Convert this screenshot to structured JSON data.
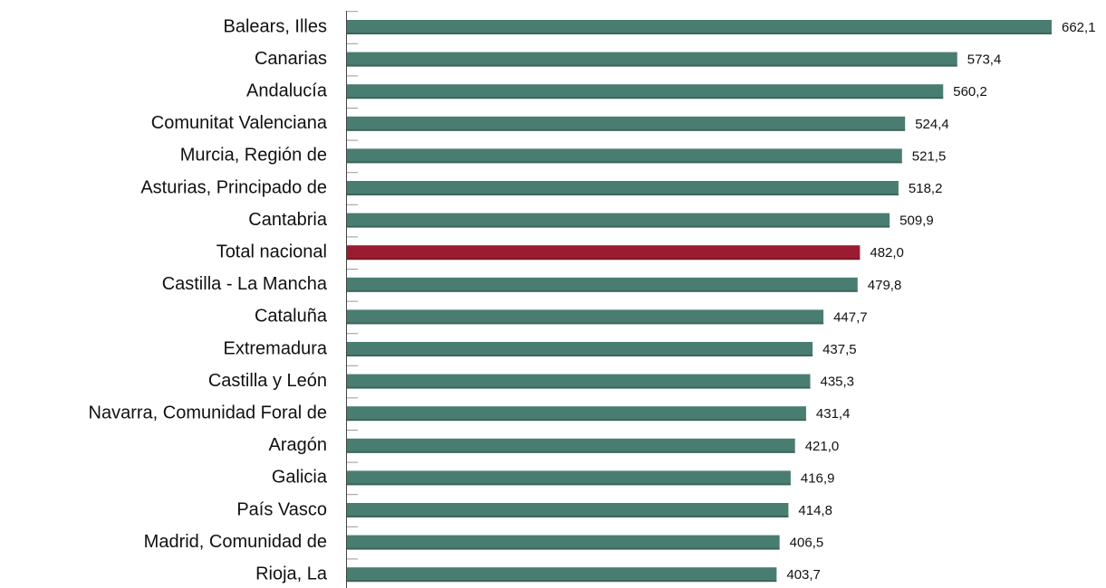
{
  "chart_data": {
    "type": "bar",
    "orientation": "horizontal",
    "categories": [
      "Balears, Illes",
      "Canarias",
      "Andalucía",
      "Comunitat Valenciana",
      "Murcia, Región de",
      "Asturias, Principado de",
      "Cantabria",
      "Total nacional",
      "Castilla - La Mancha",
      "Cataluña",
      "Extremadura",
      "Castilla y León",
      "Navarra, Comunidad Foral de",
      "Aragón",
      "Galicia",
      "País Vasco",
      "Madrid, Comunidad de",
      "Rioja, La"
    ],
    "values": [
      662.1,
      573.4,
      560.2,
      524.4,
      521.5,
      518.2,
      509.9,
      482.0,
      479.8,
      447.7,
      437.5,
      435.3,
      431.4,
      421.0,
      416.9,
      414.8,
      406.5,
      403.7
    ],
    "value_labels": [
      "662,1",
      "573,4",
      "560,2",
      "524,4",
      "521,5",
      "518,2",
      "509,9",
      "482,0",
      "479,8",
      "447,7",
      "437,5",
      "435,3",
      "431,4",
      "421,0",
      "416,9",
      "414,8",
      "406,5",
      "403,7"
    ],
    "colors": [
      "#4a7d72",
      "#4a7d72",
      "#4a7d72",
      "#4a7d72",
      "#4a7d72",
      "#4a7d72",
      "#4a7d72",
      "#9b1c31",
      "#4a7d72",
      "#4a7d72",
      "#4a7d72",
      "#4a7d72",
      "#4a7d72",
      "#4a7d72",
      "#4a7d72",
      "#4a7d72",
      "#4a7d72",
      "#4a7d72"
    ]
  }
}
